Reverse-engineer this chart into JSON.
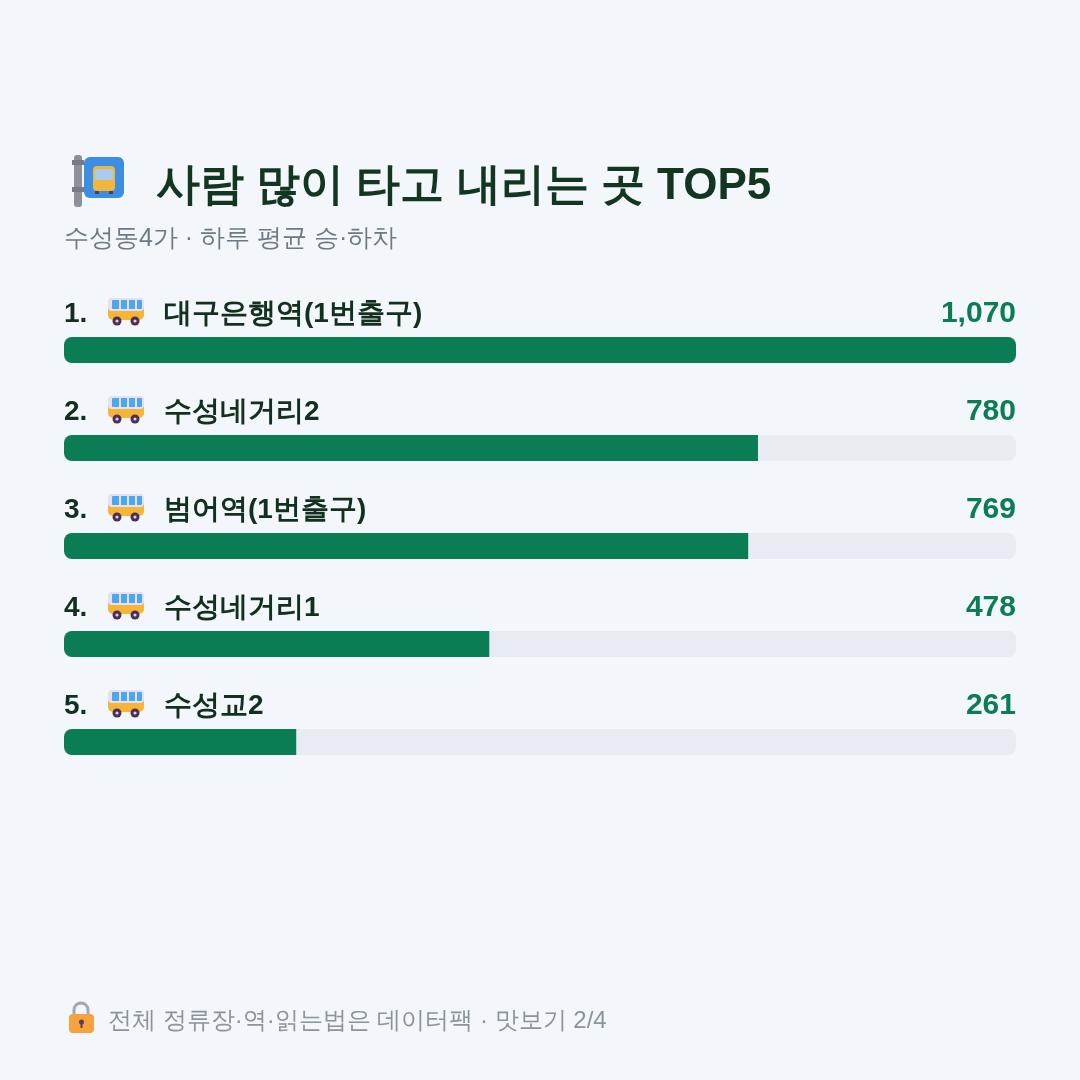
{
  "chart_data": {
    "type": "bar",
    "orientation": "horizontal",
    "title": "사람 많이 타고 내리는 곳 TOP5",
    "subtitle": "수성동4가 · 하루 평균 승·하차",
    "categories": [
      "1. 대구은행역(1번출구)",
      "2. 수성네거리2",
      "3. 범어역(1번출구)",
      "4. 수성네거리1",
      "5. 수성교2"
    ],
    "values": [
      1070,
      780,
      769,
      478,
      261
    ],
    "value_labels": [
      "1,070",
      "780",
      "769",
      "478",
      "261"
    ],
    "color": "#0b7d55",
    "annotations": [
      "전체 정류장·역·읽는법은 데이터팩 · 맛보기 2/4"
    ]
  }
}
